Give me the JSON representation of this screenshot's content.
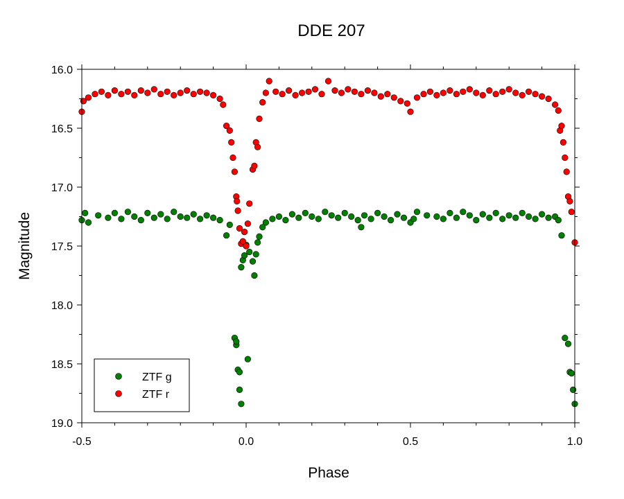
{
  "chart_data": {
    "type": "scatter",
    "title": "DDE 207",
    "xlabel": "Phase",
    "ylabel": "Magnitude",
    "xlim": [
      -0.5,
      1.0
    ],
    "ylim": [
      16.0,
      19.0
    ],
    "y_inverted": true,
    "x_ticks": [
      "-0.5",
      "0.0",
      "0.5",
      "1.0"
    ],
    "y_ticks": [
      "16.0",
      "16.5",
      "17.0",
      "17.5",
      "18.0",
      "18.5",
      "19.0"
    ],
    "grid": false,
    "legend_position": "bottom-left",
    "series": [
      {
        "name": "ZTF g",
        "color": "#008000",
        "x": [
          -0.5,
          -0.49,
          -0.48,
          -0.45,
          -0.42,
          -0.4,
          -0.38,
          -0.36,
          -0.34,
          -0.32,
          -0.3,
          -0.28,
          -0.26,
          -0.24,
          -0.22,
          -0.2,
          -0.18,
          -0.16,
          -0.14,
          -0.12,
          -0.1,
          -0.08,
          -0.06,
          -0.05,
          -0.035,
          -0.03,
          -0.03,
          -0.025,
          -0.02,
          -0.02,
          -0.015,
          -0.015,
          -0.01,
          -0.005,
          0.0,
          0.005,
          0.01,
          0.02,
          0.025,
          0.03,
          0.035,
          0.04,
          0.05,
          0.06,
          0.08,
          0.1,
          0.12,
          0.14,
          0.16,
          0.18,
          0.2,
          0.22,
          0.24,
          0.26,
          0.28,
          0.3,
          0.32,
          0.34,
          0.35,
          0.36,
          0.38,
          0.4,
          0.42,
          0.44,
          0.46,
          0.48,
          0.5,
          0.51,
          0.52,
          0.55,
          0.58,
          0.6,
          0.62,
          0.64,
          0.66,
          0.68,
          0.7,
          0.72,
          0.74,
          0.76,
          0.78,
          0.8,
          0.82,
          0.84,
          0.86,
          0.88,
          0.9,
          0.92,
          0.94,
          0.95,
          0.96,
          0.97,
          0.98,
          0.985,
          0.99,
          0.995,
          1.0
        ],
        "y": [
          17.28,
          17.22,
          17.3,
          17.24,
          17.26,
          17.22,
          17.27,
          17.21,
          17.25,
          17.28,
          17.22,
          17.26,
          17.23,
          17.27,
          17.21,
          17.25,
          17.26,
          17.23,
          17.27,
          17.24,
          17.26,
          17.28,
          17.41,
          17.32,
          18.28,
          18.34,
          18.31,
          18.55,
          18.57,
          18.72,
          18.84,
          17.68,
          17.62,
          17.58,
          17.49,
          18.46,
          17.55,
          17.63,
          17.75,
          17.57,
          17.47,
          17.42,
          17.34,
          17.3,
          17.27,
          17.25,
          17.28,
          17.23,
          17.26,
          17.22,
          17.25,
          17.27,
          17.21,
          17.24,
          17.26,
          17.22,
          17.25,
          17.28,
          17.34,
          17.24,
          17.27,
          17.22,
          17.25,
          17.28,
          17.23,
          17.26,
          17.3,
          17.27,
          17.21,
          17.24,
          17.25,
          17.27,
          17.22,
          17.26,
          17.21,
          17.24,
          17.28,
          17.23,
          17.26,
          17.22,
          17.27,
          17.24,
          17.26,
          17.22,
          17.25,
          17.27,
          17.23,
          17.26,
          17.25,
          17.28,
          17.41,
          18.28,
          18.33,
          18.57,
          18.58,
          18.72,
          18.84
        ]
      },
      {
        "name": "ZTF r",
        "color": "#ff0000",
        "x": [
          -0.5,
          -0.495,
          -0.48,
          -0.46,
          -0.44,
          -0.42,
          -0.4,
          -0.38,
          -0.36,
          -0.34,
          -0.32,
          -0.3,
          -0.28,
          -0.26,
          -0.24,
          -0.22,
          -0.2,
          -0.18,
          -0.16,
          -0.14,
          -0.12,
          -0.1,
          -0.08,
          -0.07,
          -0.06,
          -0.05,
          -0.045,
          -0.04,
          -0.035,
          -0.03,
          -0.028,
          -0.025,
          -0.02,
          -0.015,
          -0.01,
          -0.005,
          0.0,
          0.005,
          0.01,
          0.02,
          0.025,
          0.03,
          0.035,
          0.04,
          0.05,
          0.06,
          0.07,
          0.09,
          0.11,
          0.13,
          0.15,
          0.17,
          0.19,
          0.21,
          0.23,
          0.25,
          0.27,
          0.29,
          0.31,
          0.33,
          0.35,
          0.37,
          0.39,
          0.41,
          0.43,
          0.45,
          0.47,
          0.49,
          0.5,
          0.52,
          0.54,
          0.56,
          0.58,
          0.6,
          0.62,
          0.64,
          0.66,
          0.68,
          0.7,
          0.72,
          0.74,
          0.76,
          0.78,
          0.8,
          0.82,
          0.84,
          0.86,
          0.88,
          0.9,
          0.92,
          0.94,
          0.95,
          0.955,
          0.96,
          0.965,
          0.97,
          0.975,
          0.98,
          0.985,
          0.99,
          1.0
        ],
        "y": [
          16.36,
          16.27,
          16.24,
          16.21,
          16.19,
          16.22,
          16.18,
          16.21,
          16.19,
          16.22,
          16.18,
          16.2,
          16.17,
          16.21,
          16.19,
          16.22,
          16.2,
          16.18,
          16.21,
          16.19,
          16.2,
          16.22,
          16.25,
          16.3,
          16.48,
          16.52,
          16.62,
          16.75,
          16.87,
          17.08,
          17.12,
          17.2,
          17.35,
          17.48,
          17.46,
          17.38,
          17.5,
          17.31,
          17.14,
          16.85,
          16.82,
          16.62,
          16.66,
          16.42,
          16.28,
          16.2,
          16.1,
          16.19,
          16.21,
          16.18,
          16.22,
          16.2,
          16.19,
          16.17,
          16.21,
          16.1,
          16.18,
          16.2,
          16.17,
          16.19,
          16.21,
          16.18,
          16.2,
          16.23,
          16.21,
          16.24,
          16.27,
          16.29,
          16.36,
          16.24,
          16.21,
          16.19,
          16.22,
          16.2,
          16.18,
          16.21,
          16.19,
          16.17,
          16.2,
          16.22,
          16.18,
          16.21,
          16.19,
          16.17,
          16.2,
          16.22,
          16.19,
          16.21,
          16.23,
          16.25,
          16.3,
          16.35,
          16.52,
          16.48,
          16.62,
          16.75,
          16.87,
          17.08,
          17.12,
          17.21,
          17.47
        ]
      }
    ]
  }
}
